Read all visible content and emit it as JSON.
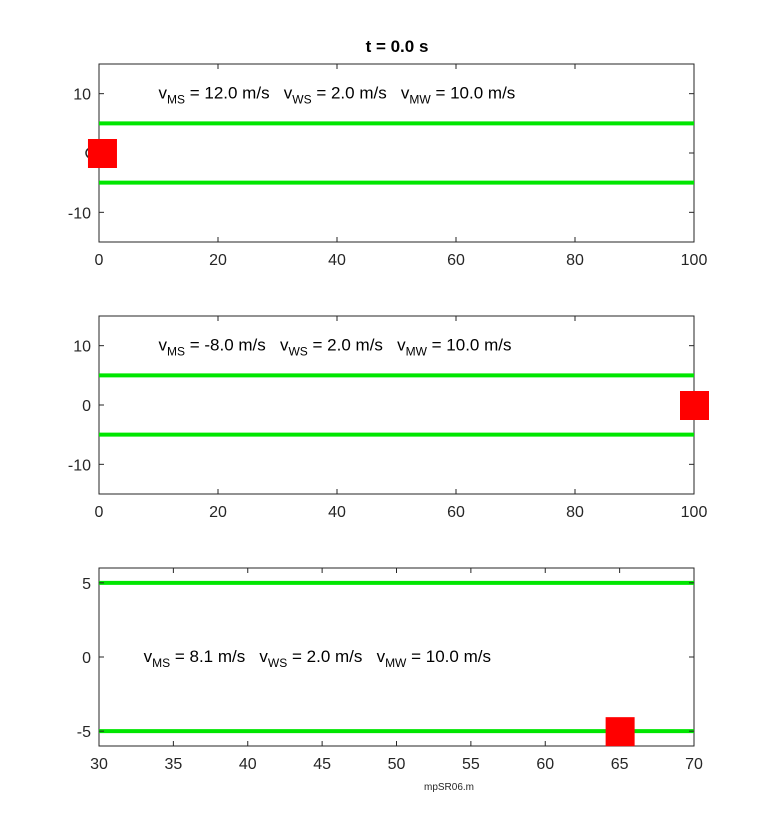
{
  "figure": {
    "title": "t = 0.0 s",
    "footer": "mpSR06.m"
  },
  "colors": {
    "river_bank": "#00e600",
    "boat": "#ff0000",
    "axes": "#262626"
  },
  "chart_data": [
    {
      "type": "scatter",
      "xlim": [
        0,
        100
      ],
      "ylim": [
        -15,
        15
      ],
      "xticks": [
        "0",
        "20",
        "40",
        "60",
        "80",
        "100"
      ],
      "yticks": [
        "10",
        "",
        "-10"
      ],
      "ytick_values": [
        10,
        0,
        -10
      ],
      "xtick_values": [
        0,
        20,
        40,
        60,
        80,
        100
      ],
      "banks": [
        5,
        -5
      ],
      "boat": {
        "x": 0.5,
        "y": 0
      },
      "start_marker": {
        "x": 0,
        "y": 0
      },
      "annotation": {
        "v_ms_label": "v",
        "v_ms_sub": "MS",
        "v_ms_value": " = 12.0 m/s",
        "v_ws_label": "v",
        "v_ws_sub": "WS",
        "v_ws_value": " = 2.0 m/s",
        "v_mw_label": "v",
        "v_mw_sub": "MW",
        "v_mw_value": " = 10.0 m/s",
        "x": 10,
        "y": 10
      }
    },
    {
      "type": "scatter",
      "xlim": [
        0,
        100
      ],
      "ylim": [
        -15,
        15
      ],
      "xticks": [
        "0",
        "20",
        "40",
        "60",
        "80",
        "100"
      ],
      "yticks": [
        "10",
        "0",
        "-10"
      ],
      "ytick_values": [
        10,
        0,
        -10
      ],
      "xtick_values": [
        0,
        20,
        40,
        60,
        80,
        100
      ],
      "banks": [
        5,
        -5
      ],
      "boat": {
        "x": 100,
        "y": 0
      },
      "annotation": {
        "v_ms_label": "v",
        "v_ms_sub": "MS",
        "v_ms_value": " = -8.0 m/s",
        "v_ws_label": "v",
        "v_ws_sub": "WS",
        "v_ws_value": " = 2.0 m/s",
        "v_mw_label": "v",
        "v_mw_sub": "MW",
        "v_mw_value": " = 10.0 m/s",
        "x": 10,
        "y": 10
      }
    },
    {
      "type": "scatter",
      "xlim": [
        30,
        70
      ],
      "ylim": [
        -6,
        6
      ],
      "xticks": [
        "30",
        "35",
        "40",
        "45",
        "50",
        "55",
        "60",
        "65",
        "70"
      ],
      "yticks": [
        "5",
        "0",
        "-5"
      ],
      "ytick_values": [
        5,
        0,
        -5
      ],
      "xtick_values": [
        30,
        35,
        40,
        45,
        50,
        55,
        60,
        65,
        70
      ],
      "banks": [
        5,
        -5
      ],
      "boat": {
        "x": 65,
        "y": -5
      },
      "annotation": {
        "v_ms_label": "v",
        "v_ms_sub": "MS",
        "v_ms_value": " = 8.1 m/s",
        "v_ws_label": "v",
        "v_ws_sub": "WS",
        "v_ws_value": " = 2.0 m/s",
        "v_mw_label": "v",
        "v_mw_sub": "MW",
        "v_mw_value": " = 10.0 m/s",
        "x": 33,
        "y": 0
      }
    }
  ]
}
